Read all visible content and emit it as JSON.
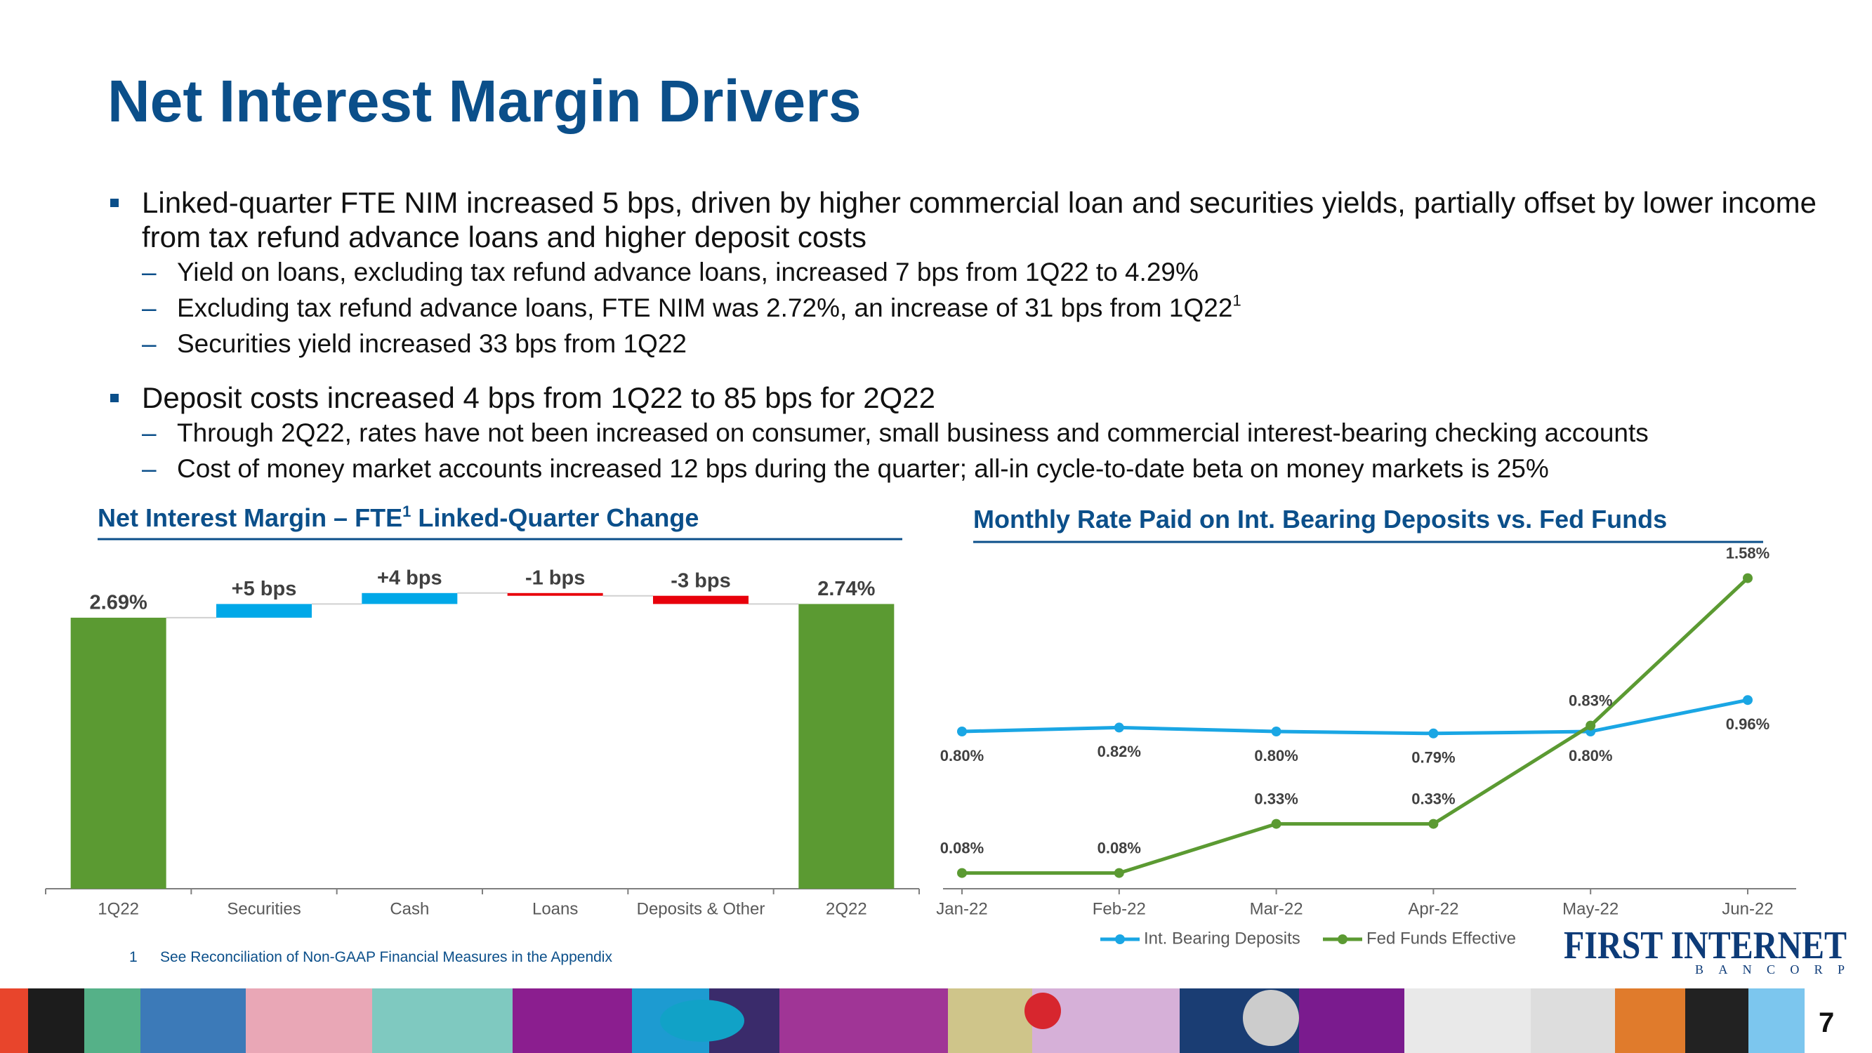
{
  "title": "Net Interest Margin Drivers",
  "bullets": [
    {
      "text": "Linked-quarter FTE NIM increased 5 bps, driven by higher commercial loan and securities yields, partially offset by lower income from tax refund advance loans and higher deposit costs",
      "sub": [
        {
          "text": "Yield on loans, excluding tax refund advance loans, increased 7 bps from 1Q22 to 4.29%"
        },
        {
          "text": "Excluding tax refund advance loans, FTE NIM was 2.72%, an increase of 31 bps from 1Q22",
          "note": "1"
        },
        {
          "text": "Securities yield increased 33 bps from 1Q22"
        }
      ]
    },
    {
      "text": "Deposit costs increased 4 bps from 1Q22 to 85 bps for 2Q22",
      "sub": [
        {
          "text": "Through 2Q22, rates have not been increased on consumer, small business and commercial interest-bearing checking accounts"
        },
        {
          "text": "Cost of money market accounts increased 12 bps during the quarter; all-in cycle-to-date beta on money markets is 25%"
        }
      ]
    }
  ],
  "footnote": {
    "marker": "1",
    "text": "See Reconciliation of Non-GAAP Financial Measures in the Appendix"
  },
  "logo": {
    "name": "FIRST INTERNET",
    "sub": "BANCORP"
  },
  "page_number": "7",
  "chart_data": [
    {
      "type": "waterfall",
      "title": "Net Interest Margin – FTE",
      "title_note": "1",
      "title_suffix": "Linked-Quarter Change",
      "categories": [
        "1Q22",
        "Securities",
        "Cash",
        "Loans",
        "Deposits & Other",
        "2Q22"
      ],
      "values": [
        2.69,
        0.05,
        0.04,
        -0.01,
        -0.03,
        2.74
      ],
      "value_labels": [
        "2.69%",
        "+5 bps",
        "+4 bps",
        "-1 bps",
        "-3 bps",
        "2.74%"
      ],
      "measure": [
        "total",
        "relative",
        "relative",
        "relative",
        "relative",
        "total"
      ],
      "colors": {
        "total": "#5b9a32",
        "increase": "#00a8e8",
        "decrease": "#e8000b"
      },
      "ylim": [
        1.7,
        2.8
      ]
    },
    {
      "type": "line",
      "title": "Monthly Rate Paid on Int. Bearing Deposits vs. Fed Funds",
      "categories": [
        "Jan-22",
        "Feb-22",
        "Mar-22",
        "Apr-22",
        "May-22",
        "Jun-22"
      ],
      "series": [
        {
          "name": "Int. Bearing Deposits",
          "color": "#1aa6e4",
          "values": [
            0.8,
            0.82,
            0.8,
            0.79,
            0.8,
            0.96
          ],
          "value_labels": [
            "0.80%",
            "0.82%",
            "0.80%",
            "0.79%",
            "0.80%",
            "0.96%"
          ],
          "label_position": "below"
        },
        {
          "name": "Fed Funds Effective",
          "color": "#5b9a32",
          "values": [
            0.08,
            0.08,
            0.33,
            0.33,
            0.83,
            1.58
          ],
          "value_labels": [
            "0.08%",
            "0.08%",
            "0.33%",
            "0.33%",
            "0.83%",
            "1.58%"
          ],
          "label_position": "above"
        }
      ],
      "ylim": [
        0,
        1.75
      ],
      "legend": "bottom"
    }
  ]
}
